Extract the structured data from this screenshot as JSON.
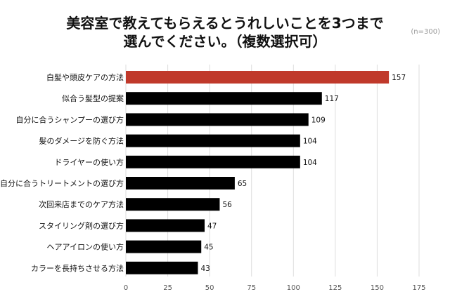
{
  "chart_data": {
    "type": "bar",
    "orientation": "horizontal",
    "title_lines": [
      "美容室で教えてもらえるとうれしいことを3つまで",
      "選んでください。（複数選択可）"
    ],
    "note": "(n=300)",
    "categories": [
      "白髪や頭皮ケアの方法",
      "似合う髪型の提案",
      "自分に合うシャンプーの選び方",
      "髪のダメージを防ぐ方法",
      "ドライヤーの使い方",
      "自分に合うトリートメントの選び方",
      "次回来店までのケア方法",
      "スタイリング剤の選び方",
      "ヘアアイロンの使い方",
      "カラーを長持ちさせる方法"
    ],
    "values": [
      157,
      117,
      109,
      104,
      104,
      65,
      56,
      47,
      45,
      43
    ],
    "highlight_index": 0,
    "xlim": [
      0,
      175
    ],
    "xticks": [
      0,
      25,
      50,
      75,
      100,
      125,
      150,
      175
    ],
    "grid": true,
    "colors": {
      "highlight": "#c0392b",
      "bar": "#000000",
      "grid": "#dddddd"
    }
  }
}
